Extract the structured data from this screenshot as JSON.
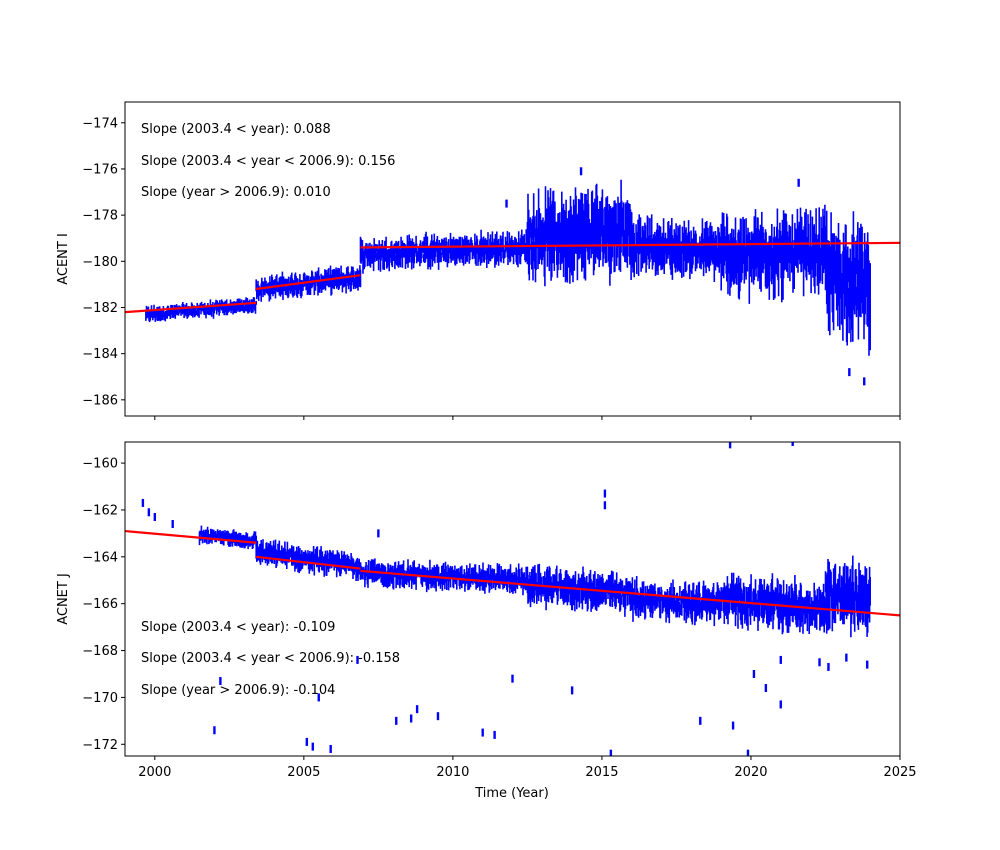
{
  "chart_data": [
    {
      "type": "scatter",
      "ylabel": "ACENT I",
      "xlim": [
        1999,
        2025
      ],
      "ylim": [
        -186.7,
        -173.1
      ],
      "x_ticks": [
        2000,
        2005,
        2010,
        2015,
        2020,
        2025
      ],
      "y_ticks": [
        -174,
        -176,
        -178,
        -180,
        -182,
        -184,
        -186
      ],
      "y_tick_labels": [
        "−174",
        "−176",
        "−178",
        "−180",
        "−182",
        "−184",
        "−186"
      ],
      "show_x_tick_labels": false,
      "point_color": "#0000ff",
      "fit_color": "#ff0000",
      "annotations": [
        "Slope (2003.4 < year):  0.088",
        "Slope (2003.4 <  year < 2006.9): 0.156",
        "Slope (year > 2006.9):  0.010"
      ],
      "annotation_position": "top-left",
      "fit_lines": [
        {
          "x": [
            1999,
            2003.4
          ],
          "y": [
            -182.2,
            -181.8
          ]
        },
        {
          "x": [
            2003.4,
            2006.9
          ],
          "y": [
            -181.2,
            -180.6
          ]
        },
        {
          "x": [
            2006.9,
            2025
          ],
          "y": [
            -179.4,
            -179.2
          ]
        }
      ],
      "data_segments": [
        {
          "x_start": 1999.7,
          "x_end": 2003.4,
          "base_start": -182.3,
          "base_end": -181.9,
          "spread": 0.6
        },
        {
          "x_start": 2003.4,
          "x_end": 2006.9,
          "base_start": -181.2,
          "base_end": -180.7,
          "spread": 0.9
        },
        {
          "x_start": 2006.9,
          "x_end": 2012.5,
          "base_start": -179.7,
          "base_end": -179.4,
          "spread": 1.2
        },
        {
          "x_start": 2012.5,
          "x_end": 2016.0,
          "base_start": -179.0,
          "base_end": -178.6,
          "spread": 3.2
        },
        {
          "x_start": 2016.0,
          "x_end": 2019.0,
          "base_start": -179.3,
          "base_end": -179.6,
          "spread": 2.0
        },
        {
          "x_start": 2019.0,
          "x_end": 2022.5,
          "base_start": -179.8,
          "base_end": -179.6,
          "spread": 3.0
        },
        {
          "x_start": 2022.5,
          "x_end": 2024.0,
          "base_start": -180.5,
          "base_end": -181.0,
          "spread": 4.2
        }
      ],
      "outliers": [
        {
          "x": 2023.8,
          "y": -185.2
        },
        {
          "x": 2023.3,
          "y": -184.8
        },
        {
          "x": 2014.3,
          "y": -176.1
        },
        {
          "x": 2021.6,
          "y": -176.6
        },
        {
          "x": 2011.8,
          "y": -177.5
        }
      ]
    },
    {
      "type": "scatter",
      "ylabel": "ACNET J",
      "xlabel": "Time (Year)",
      "xlim": [
        1999,
        2025
      ],
      "ylim": [
        -172.5,
        -159.1
      ],
      "x_ticks": [
        2000,
        2005,
        2010,
        2015,
        2020,
        2025
      ],
      "x_tick_labels": [
        "2000",
        "2005",
        "2010",
        "2015",
        "2020",
        "2025"
      ],
      "y_ticks": [
        -160,
        -162,
        -164,
        -166,
        -168,
        -170,
        -172
      ],
      "y_tick_labels": [
        "−160",
        "−162",
        "−164",
        "−166",
        "−168",
        "−170",
        "−172"
      ],
      "show_x_tick_labels": true,
      "point_color": "#0000ff",
      "fit_color": "#ff0000",
      "annotations": [
        "Slope (2003.4 < year):  -0.109",
        "Slope (2003.4 <  year < 2006.9): -0.158",
        "Slope (year > 2006.9):  -0.104"
      ],
      "annotation_position": "bottom-left",
      "fit_lines": [
        {
          "x": [
            1999,
            2003.4
          ],
          "y": [
            -162.9,
            -163.4
          ]
        },
        {
          "x": [
            2003.4,
            2006.9
          ],
          "y": [
            -164.0,
            -164.5
          ]
        },
        {
          "x": [
            2006.9,
            2025
          ],
          "y": [
            -164.6,
            -166.5
          ]
        }
      ],
      "data_segments": [
        {
          "x_start": 2001.5,
          "x_end": 2003.4,
          "base_start": -163.1,
          "base_end": -163.3,
          "spread": 0.6
        },
        {
          "x_start": 2003.4,
          "x_end": 2006.9,
          "base_start": -163.8,
          "base_end": -164.4,
          "spread": 0.9
        },
        {
          "x_start": 2006.9,
          "x_end": 2012.5,
          "base_start": -164.7,
          "base_end": -165.0,
          "spread": 1.0
        },
        {
          "x_start": 2012.5,
          "x_end": 2016.0,
          "base_start": -165.2,
          "base_end": -165.6,
          "spread": 1.4
        },
        {
          "x_start": 2016.0,
          "x_end": 2019.0,
          "base_start": -165.8,
          "base_end": -166.0,
          "spread": 1.4
        },
        {
          "x_start": 2019.0,
          "x_end": 2022.5,
          "base_start": -165.8,
          "base_end": -166.2,
          "spread": 1.8
        },
        {
          "x_start": 2022.5,
          "x_end": 2024.0,
          "base_start": -165.6,
          "base_end": -165.8,
          "spread": 2.6
        }
      ],
      "outliers": [
        {
          "x": 1999.6,
          "y": -161.7
        },
        {
          "x": 1999.8,
          "y": -162.1
        },
        {
          "x": 2000.0,
          "y": -162.3
        },
        {
          "x": 2000.6,
          "y": -162.6
        },
        {
          "x": 2007.5,
          "y": -163.0
        },
        {
          "x": 2015.1,
          "y": -161.3
        },
        {
          "x": 2015.1,
          "y": -161.8
        },
        {
          "x": 2019.3,
          "y": -159.2
        },
        {
          "x": 2021.4,
          "y": -159.1
        },
        {
          "x": 2002.0,
          "y": -171.4
        },
        {
          "x": 2002.2,
          "y": -169.3
        },
        {
          "x": 2005.1,
          "y": -171.9
        },
        {
          "x": 2005.3,
          "y": -172.1
        },
        {
          "x": 2005.5,
          "y": -170.0
        },
        {
          "x": 2005.9,
          "y": -172.2
        },
        {
          "x": 2006.8,
          "y": -168.4
        },
        {
          "x": 2008.1,
          "y": -171.0
        },
        {
          "x": 2008.6,
          "y": -170.9
        },
        {
          "x": 2008.8,
          "y": -170.5
        },
        {
          "x": 2009.5,
          "y": -170.8
        },
        {
          "x": 2011.0,
          "y": -171.5
        },
        {
          "x": 2011.4,
          "y": -171.6
        },
        {
          "x": 2012.0,
          "y": -169.2
        },
        {
          "x": 2014.0,
          "y": -169.7
        },
        {
          "x": 2015.3,
          "y": -172.4
        },
        {
          "x": 2018.3,
          "y": -171.0
        },
        {
          "x": 2019.4,
          "y": -171.2
        },
        {
          "x": 2019.9,
          "y": -172.4
        },
        {
          "x": 2020.1,
          "y": -169.0
        },
        {
          "x": 2020.5,
          "y": -169.6
        },
        {
          "x": 2021.0,
          "y": -170.3
        },
        {
          "x": 2021.0,
          "y": -168.4
        },
        {
          "x": 2022.3,
          "y": -168.5
        },
        {
          "x": 2022.6,
          "y": -168.7
        },
        {
          "x": 2023.2,
          "y": -168.3
        },
        {
          "x": 2023.9,
          "y": -168.6
        }
      ]
    }
  ]
}
